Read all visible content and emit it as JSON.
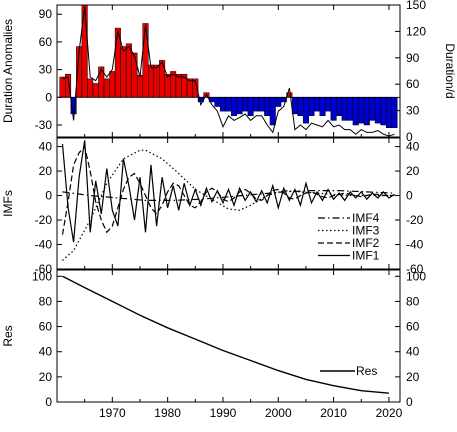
{
  "chart_data": [
    {
      "type": "bar",
      "ylabel": "Duration Anomalies",
      "ylabel_right": "Duration/d",
      "ylim": [
        -43,
        100
      ],
      "yticks": [
        -30,
        0,
        30,
        60,
        90
      ],
      "ylim_right": [
        0,
        150
      ],
      "yticks_right": [
        0,
        30,
        60,
        90,
        120,
        150
      ],
      "xlim": [
        1960,
        2022
      ],
      "xticks": [
        1970,
        1980,
        1990,
        2000,
        2010,
        2020
      ],
      "colors": {
        "positive": "#e60000",
        "negative": "#0000cc"
      },
      "x": [
        1961,
        1962,
        1963,
        1964,
        1965,
        1966,
        1967,
        1968,
        1969,
        1970,
        1971,
        1972,
        1973,
        1974,
        1975,
        1976,
        1977,
        1978,
        1979,
        1980,
        1981,
        1982,
        1983,
        1984,
        1985,
        1986,
        1987,
        1988,
        1989,
        1990,
        1991,
        1992,
        1993,
        1994,
        1995,
        1996,
        1997,
        1998,
        1999,
        2000,
        2001,
        2002,
        2003,
        2004,
        2005,
        2006,
        2007,
        2008,
        2009,
        2010,
        2011,
        2012,
        2013,
        2014,
        2015,
        2016,
        2017,
        2018,
        2019,
        2020,
        2021
      ],
      "anomalies": [
        22,
        25,
        -18,
        55,
        100,
        20,
        15,
        33,
        20,
        28,
        75,
        55,
        58,
        48,
        24,
        80,
        35,
        35,
        40,
        25,
        28,
        25,
        25,
        20,
        20,
        -5,
        5,
        -5,
        -10,
        -15,
        -15,
        -20,
        -18,
        -15,
        -20,
        -15,
        -15,
        -20,
        -30,
        -10,
        -5,
        5,
        -18,
        -20,
        -28,
        -20,
        -15,
        -20,
        -15,
        -25,
        -20,
        -25,
        -25,
        -30,
        -28,
        -30,
        -25,
        -28,
        -30,
        -33,
        -33
      ],
      "duration_line": [
        20,
        22,
        -25,
        50,
        98,
        22,
        18,
        30,
        22,
        30,
        72,
        50,
        55,
        45,
        22,
        78,
        32,
        32,
        38,
        22,
        25,
        22,
        22,
        18,
        18,
        -8,
        3,
        -8,
        -15,
        -32,
        -20,
        -25,
        -22,
        -18,
        -25,
        -20,
        -20,
        -30,
        -38,
        -15,
        -10,
        10,
        -35,
        -30,
        -35,
        -28,
        -30,
        -32,
        -25,
        -32,
        -30,
        -35,
        -35,
        -40,
        -35,
        -38,
        -38,
        -36,
        -40,
        -42,
        -40
      ]
    },
    {
      "type": "line",
      "ylabel": "IMFs",
      "ylim": [
        -60,
        47
      ],
      "yticks": [
        -60,
        -40,
        -20,
        0,
        20,
        40
      ],
      "xticks": [
        1970,
        1980,
        1990,
        2000,
        2010,
        2020
      ],
      "series": [
        {
          "name": "IMF4",
          "dash": "dash-dot",
          "x": [
            1961,
            1966,
            1971,
            1976,
            1981,
            1986,
            1991,
            1996,
            2001,
            2006,
            2011,
            2016,
            2021
          ],
          "values": [
            3,
            0,
            -2,
            -4,
            -4,
            -3,
            -1,
            1,
            3,
            4,
            4,
            3,
            2
          ]
        },
        {
          "name": "IMF3",
          "dash": "dot",
          "x": [
            1961,
            1963,
            1966,
            1969,
            1972,
            1975,
            1976,
            1979,
            1982,
            1985,
            1988,
            1991,
            1993,
            1995,
            1998,
            2001,
            2004,
            2007,
            2010,
            2013,
            2016,
            2019,
            2021
          ],
          "values": [
            -53,
            -45,
            -20,
            10,
            30,
            37,
            37,
            30,
            18,
            5,
            -3,
            -11,
            -12,
            -8,
            0,
            4,
            3,
            2,
            1,
            0,
            0,
            0,
            0
          ]
        },
        {
          "name": "IMF2",
          "dash": "dash",
          "x": [
            1961,
            1962,
            1963,
            1964,
            1965,
            1966,
            1967,
            1968,
            1969,
            1970,
            1971,
            1972,
            1973,
            1974,
            1975,
            1976,
            1977,
            1978,
            1979,
            1980,
            1981,
            1982,
            1983,
            1984,
            1985,
            1986,
            1987,
            1988,
            1989,
            1990,
            1991,
            1992,
            1993,
            1994,
            1995,
            1996,
            1997,
            1998,
            1999,
            2000,
            2001,
            2002,
            2003,
            2004,
            2005,
            2006,
            2007,
            2008,
            2009,
            2010,
            2011,
            2012,
            2013,
            2014,
            2015,
            2016,
            2017,
            2018,
            2019,
            2020,
            2021
          ],
          "values": [
            -32,
            -5,
            25,
            35,
            40,
            20,
            -5,
            -20,
            -30,
            -25,
            -10,
            5,
            15,
            18,
            10,
            0,
            -10,
            -15,
            -8,
            3,
            10,
            8,
            0,
            -8,
            -10,
            -5,
            3,
            6,
            3,
            -3,
            -5,
            -2,
            3,
            5,
            2,
            -3,
            -4,
            0,
            4,
            5,
            2,
            -2,
            -3,
            0,
            2,
            3,
            1,
            -1,
            -2,
            0,
            1,
            2,
            1,
            0,
            -1,
            0,
            1,
            1,
            0,
            0,
            0
          ]
        },
        {
          "name": "IMF1",
          "dash": "solid",
          "x": [
            1961,
            1962,
            1963,
            1964,
            1965,
            1966,
            1967,
            1968,
            1969,
            1970,
            1971,
            1972,
            1973,
            1974,
            1975,
            1976,
            1977,
            1978,
            1979,
            1980,
            1981,
            1982,
            1983,
            1984,
            1985,
            1986,
            1987,
            1988,
            1989,
            1990,
            1991,
            1992,
            1993,
            1994,
            1995,
            1996,
            1997,
            1998,
            1999,
            2000,
            2001,
            2002,
            2003,
            2004,
            2005,
            2006,
            2007,
            2008,
            2009,
            2010,
            2011,
            2012,
            2013,
            2014,
            2015,
            2016,
            2017,
            2018,
            2019,
            2020,
            2021
          ],
          "values": [
            42,
            -10,
            -38,
            15,
            45,
            -30,
            12,
            -15,
            22,
            -12,
            -25,
            30,
            8,
            -20,
            15,
            -30,
            25,
            -25,
            15,
            -10,
            8,
            -12,
            10,
            -8,
            5,
            -8,
            6,
            -5,
            4,
            -6,
            5,
            -8,
            6,
            -4,
            3,
            -5,
            4,
            -6,
            8,
            -10,
            6,
            -4,
            5,
            -8,
            10,
            -6,
            3,
            -4,
            5,
            -3,
            2,
            -4,
            3,
            -2,
            3,
            -3,
            2,
            -2,
            3,
            -2,
            1
          ]
        }
      ],
      "legend": [
        "IMF4",
        "IMF3",
        "IMF2",
        "IMF1"
      ],
      "legend_position": "bottom-right"
    },
    {
      "type": "line",
      "ylabel": "Res",
      "ylim": [
        0,
        105
      ],
      "yticks": [
        0,
        20,
        40,
        60,
        80,
        100
      ],
      "xticks": [
        1970,
        1980,
        1990,
        2000,
        2010,
        2020
      ],
      "series": [
        {
          "name": "Res",
          "x": [
            1961,
            1965,
            1970,
            1975,
            1980,
            1985,
            1990,
            1995,
            2000,
            2005,
            2010,
            2015,
            2020
          ],
          "values": [
            100,
            91,
            80,
            69,
            59,
            50,
            41,
            33,
            25,
            18,
            13,
            9,
            7
          ]
        }
      ],
      "legend": [
        "Res"
      ],
      "legend_position": "bottom-right"
    }
  ]
}
